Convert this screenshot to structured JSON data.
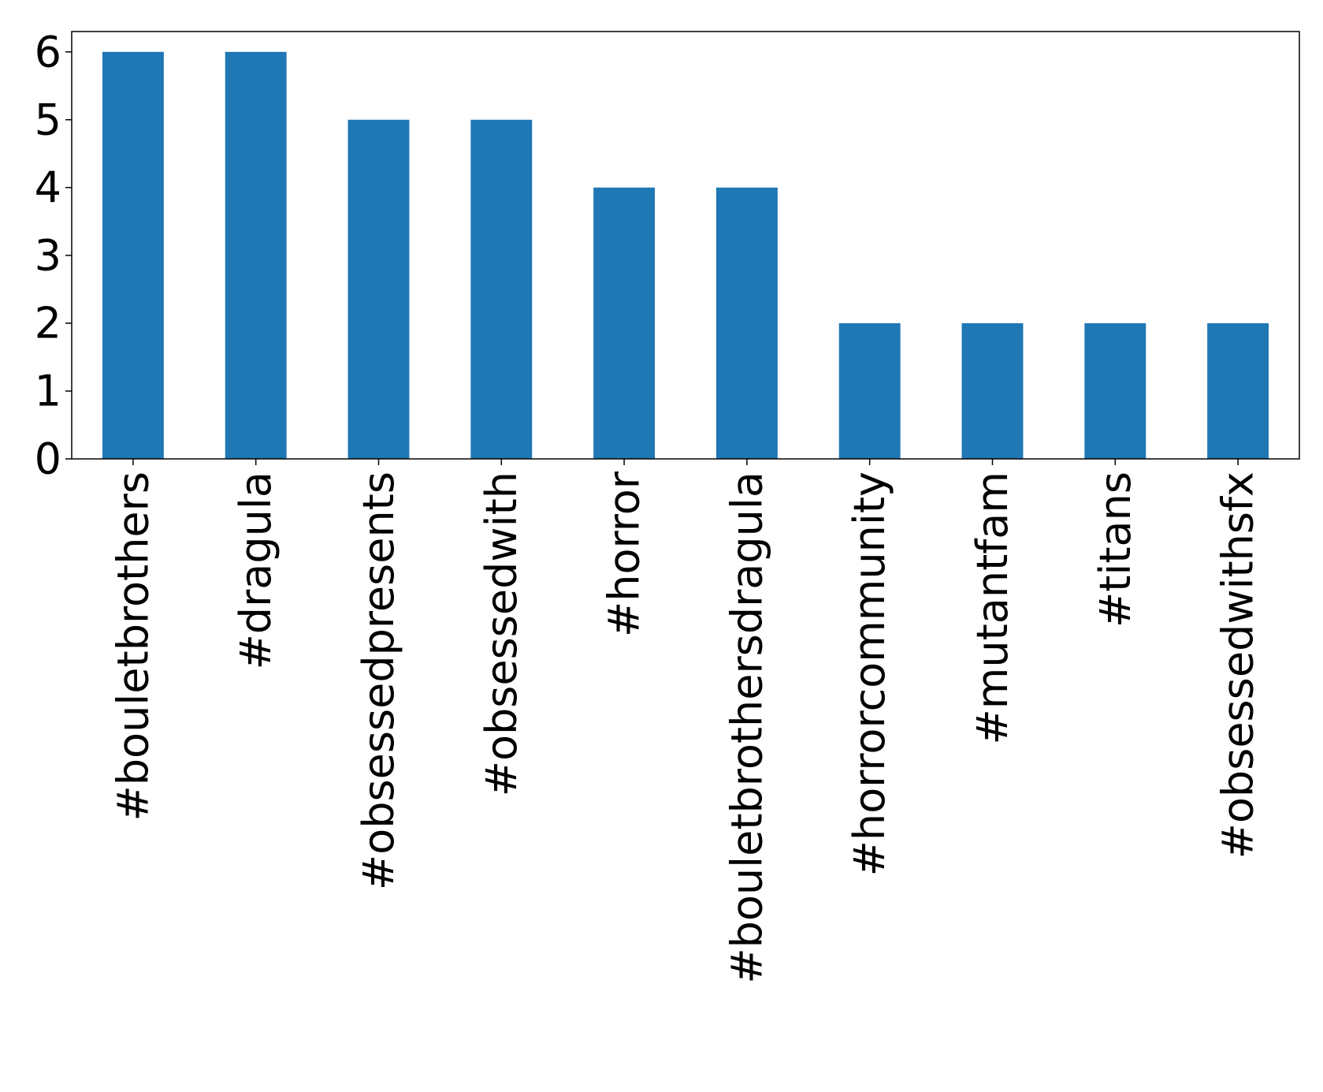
{
  "chart_data": {
    "type": "bar",
    "title": "",
    "xlabel": "",
    "ylabel": "",
    "categories": [
      "#bouletbrothers",
      "#dragula",
      "#obsessedpresents",
      "#obsessedwith",
      "#horror",
      "#bouletbrothersdragula",
      "#horrorcommunity",
      "#mutantfam",
      "#titans",
      "#obsessedwithsfx"
    ],
    "values": [
      6,
      6,
      5,
      5,
      4,
      4,
      2,
      2,
      2,
      2
    ],
    "ylim": [
      0,
      6.3
    ],
    "yticks": [
      0,
      1,
      2,
      3,
      4,
      5,
      6
    ],
    "grid": false,
    "legend": "none",
    "bar_color": "#1f77b4"
  }
}
